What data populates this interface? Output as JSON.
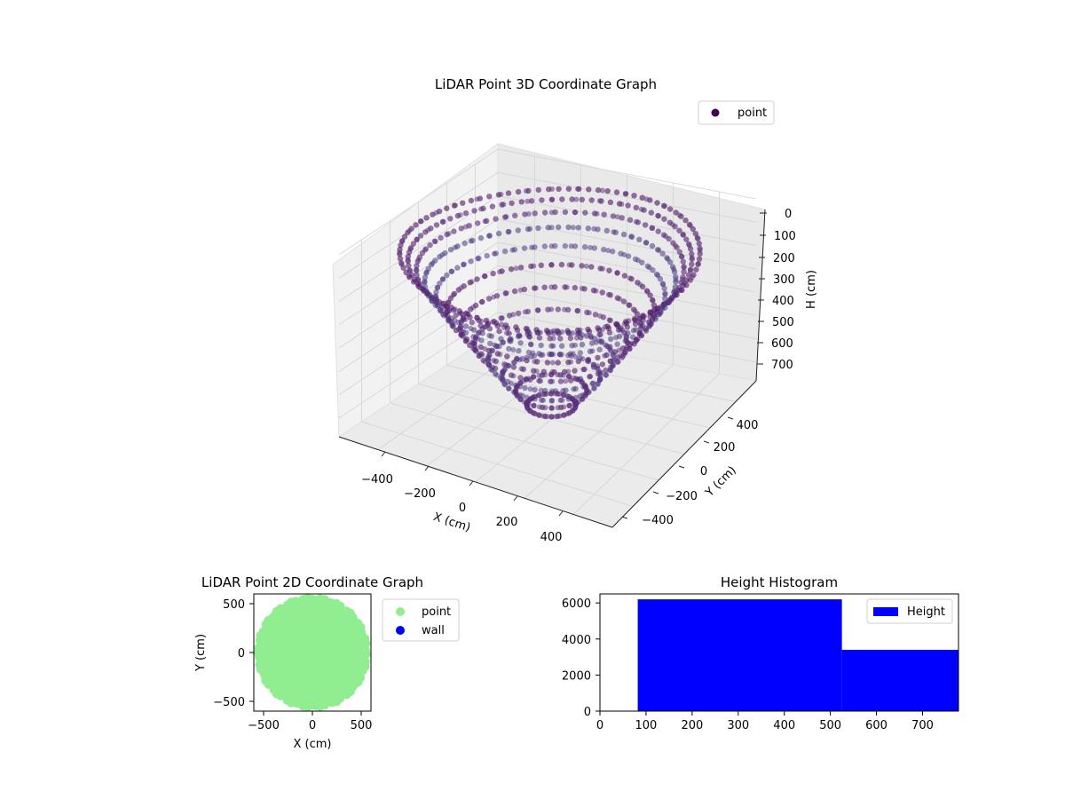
{
  "chart_data": [
    {
      "type": "scatter",
      "subtype": "3d",
      "title": "LiDAR Point 3D Coordinate Graph",
      "xlabel": "X (cm)",
      "ylabel": "Y (cm)",
      "zlabel": "H (cm)",
      "xticks": [
        "−400",
        "−200",
        "0",
        "200",
        "400"
      ],
      "yticks": [
        "−400",
        "−200",
        "0",
        "200",
        "400"
      ],
      "zticks": [
        "0",
        "100",
        "200",
        "300",
        "400",
        "500",
        "600",
        "700"
      ],
      "xlim": [
        -560,
        560
      ],
      "ylim": [
        -560,
        560
      ],
      "zlim": [
        780,
        0
      ],
      "z_axis_inverted": true,
      "grid": true,
      "legend": {
        "placement": "top-right",
        "entries": [
          {
            "label": "point",
            "color": "#440154"
          }
        ]
      },
      "series": [
        {
          "name": "point",
          "color": "#440154",
          "description_shape": "dome of concentric rings; height increases toward the center",
          "rings_radius": [
            550,
            520,
            490,
            460,
            420,
            380,
            330,
            280,
            230,
            180,
            130,
            90
          ],
          "rings_height": [
            80,
            110,
            150,
            200,
            260,
            320,
            390,
            460,
            530,
            600,
            660,
            720
          ]
        }
      ]
    },
    {
      "type": "scatter",
      "title": "LiDAR Point 2D Coordinate Graph",
      "xlabel": "X (cm)",
      "ylabel": "Y (cm)",
      "xticks": [
        "−500",
        "0",
        "500"
      ],
      "yticks": [
        "−500",
        "0",
        "500"
      ],
      "xlim": [
        -600,
        600
      ],
      "ylim": [
        -600,
        600
      ],
      "grid": false,
      "legend": {
        "placement": "outside-right",
        "entries": [
          {
            "label": "point",
            "color": "#90ee90"
          },
          {
            "label": "wall",
            "color": "#0000ff"
          }
        ]
      },
      "series": [
        {
          "name": "point",
          "color": "#90ee90",
          "approx_radius": 560
        },
        {
          "name": "wall",
          "color": "#0000ff",
          "values": []
        }
      ]
    },
    {
      "type": "bar",
      "subtype": "histogram",
      "title": "Height Histogram",
      "xticks": [
        "0",
        "100",
        "200",
        "300",
        "400",
        "500",
        "600",
        "700"
      ],
      "yticks": [
        "0",
        "2000",
        "4000",
        "6000"
      ],
      "xlim": [
        0,
        778
      ],
      "ylim": [
        0,
        6500
      ],
      "grid": false,
      "legend": {
        "placement": "top-right",
        "entries": [
          {
            "label": "Height",
            "color": "#0000ff"
          }
        ]
      },
      "series": [
        {
          "name": "Height",
          "color": "#0000ff",
          "bins": [
            {
              "x0": 82,
              "x1": 525,
              "count": 6200
            },
            {
              "x0": 525,
              "x1": 778,
              "count": 3400
            }
          ]
        }
      ]
    }
  ]
}
